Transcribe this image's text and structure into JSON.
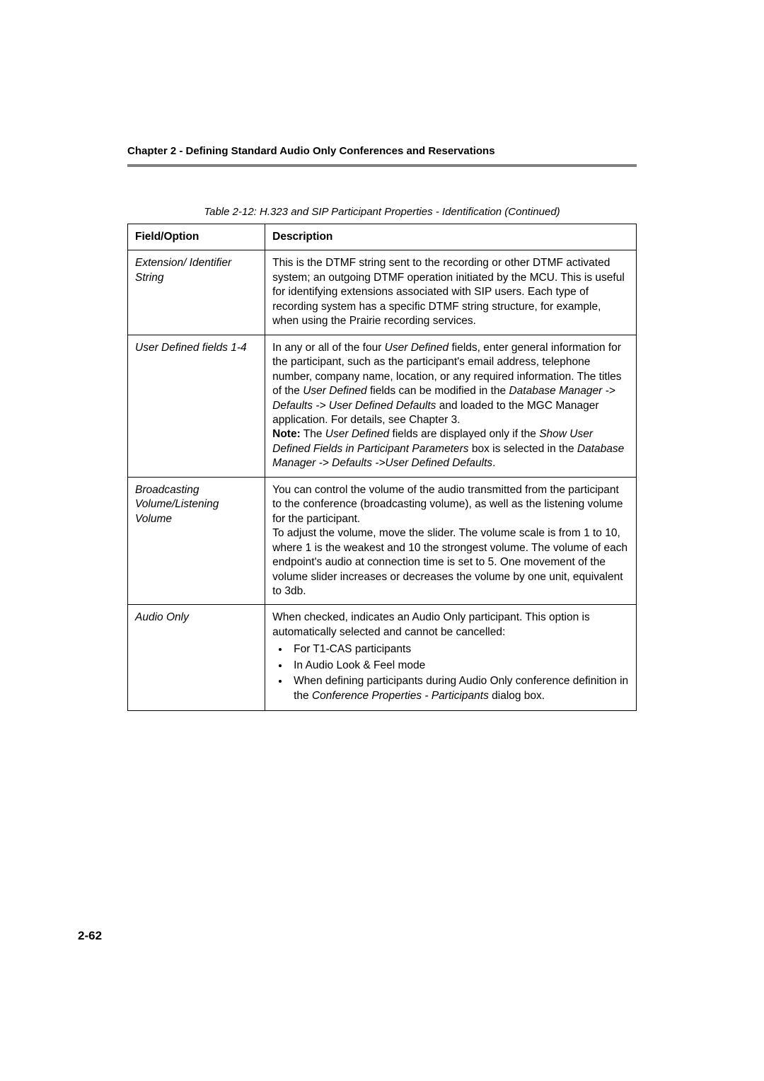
{
  "header": {
    "chapter": "Chapter 2 - Defining Standard Audio Only Conferences and Reservations"
  },
  "table": {
    "caption": "Table 2-12: H.323 and SIP Participant Properties - Identification (Continued)",
    "columns": {
      "field": "Field/Option",
      "desc": "Description"
    },
    "rows": [
      {
        "field": "Extension/ Identifier String",
        "desc_plain": "This is the DTMF string sent to the recording or other DTMF activated system; an outgoing DTMF operation initiated by the MCU. This is useful for identifying extensions associated with SIP users. Each type of recording system has a specific DTMF string structure, for example, when using the Prairie recording services."
      },
      {
        "field": "User Defined fields 1-4",
        "d2_a": "In any or all of the four ",
        "d2_b": "User Defined",
        "d2_c": " fields, enter general information for the participant, such as the participant's email address, telephone number, company name, location, or any required information. The titles of the ",
        "d2_d": "User Defined",
        "d2_e": " fields can be modified in the ",
        "d2_f": "Database Manager -> Defaults -> User Defined Defaults",
        "d2_g": " and loaded to the MGC Manager application. For details, see Chapter 3.",
        "d2_h": "Note:",
        "d2_i": " The ",
        "d2_j": "User Defined",
        "d2_k": " fields are displayed only if the ",
        "d2_l": "Show User Defined Fields in Participant Parameters",
        "d2_m": " box is selected in the ",
        "d2_n": "Database Manager -> Defaults ->User Defined Defaults",
        "d2_o": "."
      },
      {
        "field": "Broadcasting Volume/Listening Volume",
        "desc_plain": "You can control the volume of the audio transmitted from the participant to the conference (broadcasting volume), as well as the listening volume for the participant.\nTo adjust the volume, move the slider. The volume scale is from 1 to 10, where 1 is the weakest and 10 the strongest volume. The volume of each endpoint's audio at connection time is set to 5. One movement of the volume slider increases or decreases the volume by one unit, equivalent to 3db."
      },
      {
        "field": "Audio Only",
        "d4_a": "When checked, indicates an Audio Only participant. This option is automatically selected and cannot be cancelled:",
        "bullets": {
          "b1": "For T1-CAS participants",
          "b2": "In Audio Look & Feel mode",
          "b3_a": "When defining participants during Audio Only conference definition in the ",
          "b3_b": "Conference Properties - Participants",
          "b3_c": " dialog box."
        }
      }
    ]
  },
  "page_number": "2-62"
}
